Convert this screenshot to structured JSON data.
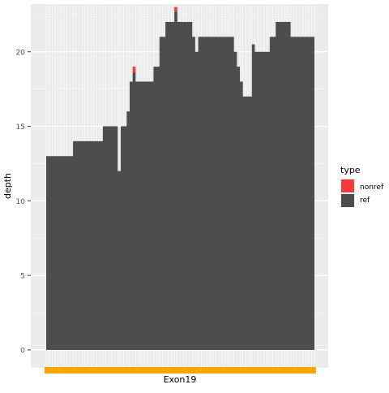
{
  "chart_data": {
    "type": "area",
    "stacked": true,
    "xlabel": "",
    "ylabel": "depth",
    "ylim": [
      -1.2,
      23.2
    ],
    "y_ticks": [
      0,
      5,
      10,
      15,
      20
    ],
    "grid": true,
    "legend": {
      "title": "type",
      "placement": "right",
      "entries": [
        {
          "name": "nonref",
          "color": "#f8393c"
        },
        {
          "name": "ref",
          "color": "#4d4d4d"
        }
      ]
    },
    "track": {
      "label": "Exon19",
      "color": "#ffa500"
    },
    "x_positions": 90,
    "series": [
      {
        "name": "ref",
        "color": "#4d4d4d",
        "values": [
          13,
          13,
          13,
          13,
          13,
          13,
          13,
          13,
          13,
          14,
          14,
          14,
          14,
          14,
          14,
          14,
          14,
          14,
          14,
          15,
          15,
          15,
          15,
          15,
          12,
          15,
          15,
          16,
          18,
          18.6,
          18,
          18,
          18,
          18,
          18,
          18,
          19,
          19,
          21,
          21,
          22,
          22,
          22,
          22.7,
          22,
          22,
          22,
          22,
          22,
          21,
          20,
          21,
          21,
          21,
          21,
          21,
          21,
          21,
          21,
          21,
          21,
          21,
          21,
          20,
          19,
          18,
          17,
          17,
          17,
          20.5,
          20,
          20,
          20,
          20,
          20,
          21,
          21,
          22,
          22,
          22,
          22,
          22,
          21,
          21,
          21,
          21,
          21,
          21,
          21,
          21
        ]
      },
      {
        "name": "nonref",
        "color": "#f8393c",
        "values": [
          0,
          0,
          0,
          0,
          0,
          0,
          0,
          0,
          0,
          0,
          0,
          0,
          0,
          0,
          0,
          0,
          0,
          0,
          0,
          0,
          0,
          0,
          0,
          0,
          0,
          0,
          0,
          0,
          0,
          0.4,
          0,
          0,
          0,
          0,
          0,
          0,
          0,
          0,
          0,
          0,
          0,
          0,
          0,
          0.3,
          0,
          0,
          0,
          0,
          0,
          0,
          0,
          0,
          0,
          0,
          0,
          0,
          0,
          0,
          0,
          0,
          0,
          0,
          0,
          0,
          0,
          0,
          0,
          0,
          0,
          0,
          0,
          0,
          0,
          0,
          0,
          0,
          0,
          0,
          0,
          0,
          0,
          0,
          0,
          0,
          0,
          0,
          0,
          0,
          0,
          0
        ]
      }
    ]
  }
}
